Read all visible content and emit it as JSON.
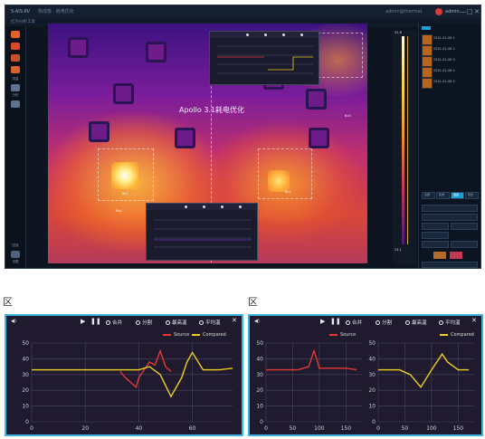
{
  "app": {
    "logo": "S-AIS·RV",
    "title": "热成像 · 耗电优化",
    "user": "admin@thermal",
    "user_short": "admin",
    "window_controls": [
      "—",
      "□",
      "✕"
    ],
    "subbar": "红外分析工具",
    "overlay_title": "Apollo 3.1耗电优化",
    "rail_labels": [
      "测温",
      "分析",
      "回放",
      "设置"
    ],
    "scale_top": "52.6",
    "scale_bottom": "24.1",
    "right_items": [
      "2021-01-08 1",
      "2021-01-08 2",
      "2021-01-08 3",
      "2021-01-08 4",
      "2021-01-08 5"
    ],
    "right_buttons": [
      "全部",
      "区域",
      "温差",
      "导出"
    ],
    "box_labels": [
      "Bx1",
      "Bx2",
      "Bx3",
      "Bx4"
    ]
  },
  "section_label": "区",
  "chart_a": {
    "controls": [
      "合并",
      "分割",
      "最高温",
      "平均温"
    ],
    "close": "✕",
    "left_icon": "◀)",
    "legend": [
      {
        "name": "Source",
        "color": "#e53935"
      },
      {
        "name": "Compared",
        "color": "#f0d020"
      }
    ]
  },
  "chart_b": {
    "controls": [
      "合并",
      "分割",
      "最高温",
      "平均温"
    ],
    "close": "✕",
    "left_icon": "◀)",
    "legend_left": {
      "name": "Source",
      "color": "#e53935"
    },
    "legend_right": {
      "name": "Compared",
      "color": "#f0d020"
    }
  },
  "chart_data": [
    {
      "type": "line",
      "title": "",
      "xlim": [
        0,
        75
      ],
      "ylim": [
        0,
        50
      ],
      "xticks": [
        0,
        20,
        40,
        60
      ],
      "yticks": [
        0,
        10,
        20,
        30,
        40,
        50
      ],
      "series": [
        {
          "name": "Source",
          "color": "#e53935",
          "x": [
            33,
            35,
            37,
            39,
            40,
            42,
            44,
            46,
            48,
            50,
            52
          ],
          "y": [
            32,
            28,
            25,
            22,
            28,
            33,
            38,
            36,
            45,
            35,
            32
          ]
        },
        {
          "name": "Compared",
          "color": "#f0d020",
          "x": [
            0,
            10,
            20,
            30,
            36,
            40,
            44,
            48,
            52,
            56,
            58,
            60,
            64,
            68,
            70,
            75
          ],
          "y": [
            33,
            33,
            33,
            33,
            33,
            33,
            35,
            30,
            16,
            28,
            38,
            44,
            33,
            33,
            33,
            34
          ]
        }
      ],
      "grid": true
    },
    {
      "type": "line",
      "title": "",
      "xlim": [
        0,
        180
      ],
      "ylim": [
        0,
        50
      ],
      "xticks": [
        0,
        50,
        100,
        150
      ],
      "yticks": [
        0,
        10,
        20,
        30,
        40,
        50
      ],
      "series": [
        {
          "name": "Source",
          "color": "#e53935",
          "x": [
            0,
            40,
            60,
            80,
            90,
            95,
            100,
            110,
            130,
            150,
            170
          ],
          "y": [
            33,
            33,
            33,
            35,
            45,
            40,
            34,
            34,
            34,
            34,
            33
          ]
        }
      ],
      "grid": true
    },
    {
      "type": "line",
      "title": "",
      "xlim": [
        0,
        180
      ],
      "ylim": [
        0,
        50
      ],
      "xticks": [
        0,
        50,
        100,
        150
      ],
      "yticks": [
        0,
        10,
        20,
        30,
        40,
        50
      ],
      "series": [
        {
          "name": "Compared",
          "color": "#f0d020",
          "x": [
            0,
            40,
            60,
            80,
            100,
            120,
            130,
            150,
            170
          ],
          "y": [
            33,
            33,
            30,
            22,
            33,
            43,
            38,
            33,
            33
          ]
        }
      ],
      "grid": true
    }
  ]
}
